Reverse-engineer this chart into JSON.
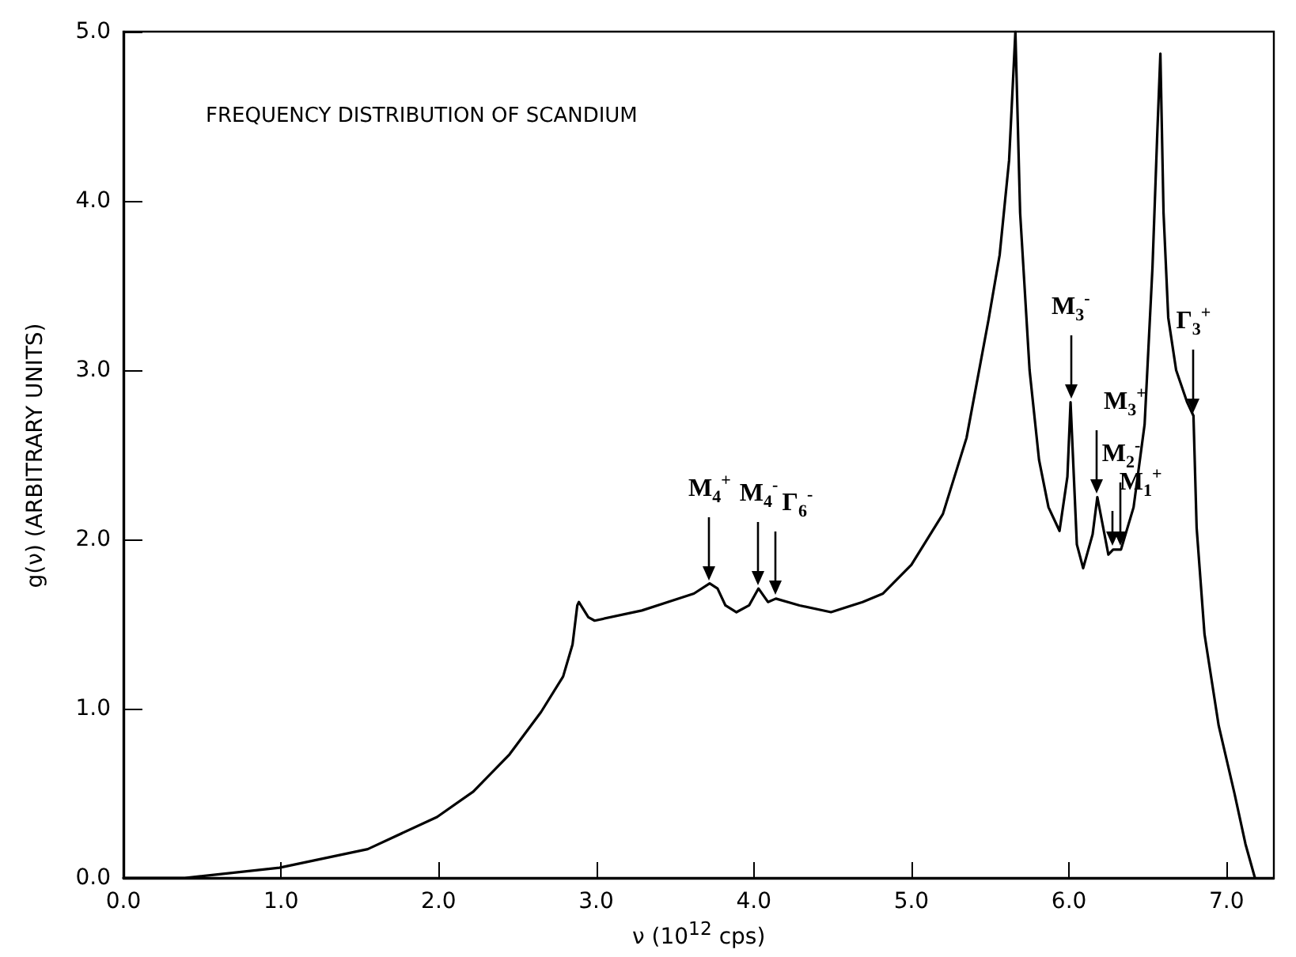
{
  "chart_data": {
    "type": "line",
    "title": "FREQUENCY DISTRIBUTION OF SCANDIUM",
    "xlabel": "ν (10$^{12}$ cps)",
    "ylabel": "g(ν) (ARBITRARY UNITS)",
    "x": [
      0,
      0.39,
      0.99,
      1.55,
      1.99,
      2.22,
      2.45,
      2.65,
      2.79,
      2.85,
      2.88,
      2.89,
      2.95,
      2.99,
      3.29,
      3.62,
      3.72,
      3.77,
      3.82,
      3.89,
      3.97,
      4.03,
      4.09,
      4.14,
      4.29,
      4.49,
      4.69,
      4.82,
      5.0,
      5.2,
      5.35,
      5.49,
      5.56,
      5.62,
      5.66,
      5.69,
      5.75,
      5.81,
      5.87,
      5.94,
      5.99,
      6.01,
      6.05,
      6.09,
      6.15,
      6.18,
      6.25,
      6.28,
      6.33,
      6.41,
      6.48,
      6.53,
      6.56,
      6.58,
      6.6,
      6.63,
      6.68,
      6.75,
      6.79,
      6.81,
      6.86,
      6.95,
      7.05,
      7.12,
      7.18
    ],
    "series": [
      {
        "color": "#000000",
        "values": [
          0,
          0,
          0.06,
          0.17,
          0.36,
          0.51,
          0.73,
          0.98,
          1.19,
          1.38,
          1.61,
          1.63,
          1.54,
          1.52,
          1.58,
          1.68,
          1.74,
          1.71,
          1.61,
          1.57,
          1.61,
          1.71,
          1.63,
          1.65,
          1.61,
          1.57,
          1.63,
          1.68,
          1.85,
          2.15,
          2.6,
          3.3,
          3.68,
          4.24,
          5.0,
          3.93,
          3.0,
          2.47,
          2.19,
          2.05,
          2.37,
          2.81,
          1.97,
          1.83,
          2.03,
          2.25,
          1.91,
          1.94,
          1.94,
          2.19,
          2.68,
          3.61,
          4.39,
          4.87,
          3.93,
          3.31,
          3.0,
          2.81,
          2.73,
          2.07,
          1.44,
          0.9,
          0.5,
          0.2,
          0
        ]
      }
    ],
    "xlim": [
      0,
      7.3
    ],
    "ylim": [
      0,
      5
    ],
    "xticks": [
      {
        "value": 0,
        "label": "0.0"
      },
      {
        "value": 1,
        "label": "1.0"
      },
      {
        "value": 2,
        "label": "2.0"
      },
      {
        "value": 3,
        "label": "3.0"
      },
      {
        "value": 4,
        "label": "4.0"
      },
      {
        "value": 5,
        "label": "5.0"
      },
      {
        "value": 6,
        "label": "6.0"
      },
      {
        "value": 7,
        "label": "7.0"
      }
    ],
    "yticks": [
      {
        "value": 0,
        "label": "0.0"
      },
      {
        "value": 1,
        "label": "1.0"
      },
      {
        "value": 2,
        "label": "2.0"
      },
      {
        "value": 3,
        "label": "3.0"
      },
      {
        "value": 4,
        "label": "4.0"
      },
      {
        "value": 5,
        "label": "5.0"
      }
    ],
    "annotations": [
      {
        "text": "M$_{4}$$^{+}$",
        "x": 3.72,
        "y": 1.74
      },
      {
        "text": "M$_{4}$$^{-}$",
        "x": 4.03,
        "y": 1.71
      },
      {
        "text": "Γ$_{6}$$^{-}$",
        "x": 4.14,
        "y": 1.65
      },
      {
        "text": "M$_{3}$$^{-}$",
        "x": 6.01,
        "y": 2.81
      },
      {
        "text": "M$_{3}$$^{+}$",
        "x": 6.18,
        "y": 2.25
      },
      {
        "text": "M$_{1}$$^{+}$",
        "x": 6.28,
        "y": 1.94
      },
      {
        "text": "M$_{2}$$^{-}$",
        "x": 6.33,
        "y": 1.94
      },
      {
        "text": "Γ$_{3}$$^{+}$",
        "x": 6.79,
        "y": 2.73
      }
    ],
    "grid": false,
    "marker": "none",
    "line_style": "solid"
  }
}
